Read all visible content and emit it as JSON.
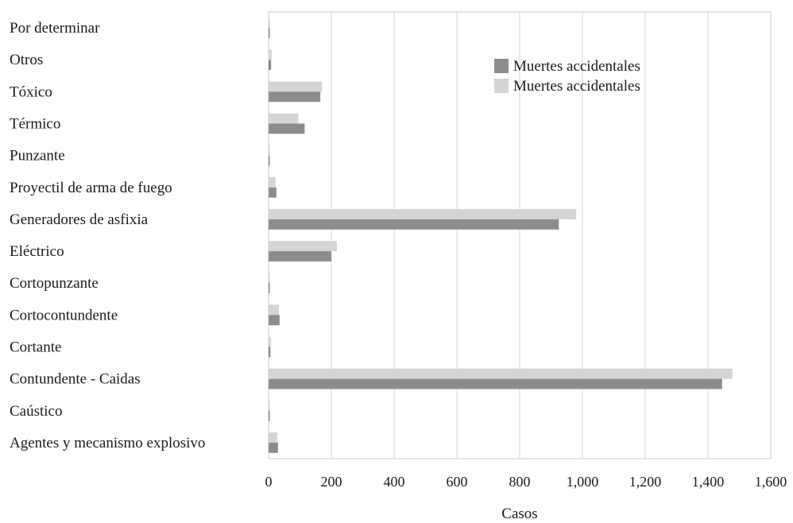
{
  "chart_data": {
    "type": "bar",
    "orientation": "horizontal",
    "title": "",
    "xlabel": "Casos",
    "ylabel": "",
    "xlim": [
      0,
      1600
    ],
    "xticks": [
      0,
      200,
      400,
      600,
      800,
      1000,
      1200,
      1400,
      1600
    ],
    "xtick_labels": [
      "0",
      "200",
      "400",
      "600",
      "800",
      "1,000",
      "1,200",
      "1,400",
      "1,600"
    ],
    "grid": "vertical",
    "legend_position": "top-right",
    "categories": [
      "Por determinar",
      "Otros",
      "Tóxico",
      "Térmico",
      "Punzante",
      "Proyectil de arma de fuego",
      "Generadores de asfixia",
      "Eléctrico",
      "Cortopunzante",
      "Cortocontundente",
      "Cortante",
      "Contundente - Caidas",
      "Caústico",
      "Agentes y mecanismo explosivo"
    ],
    "series": [
      {
        "name": "Muertes accidentales",
        "color": "#8c8c8c",
        "values": [
          3,
          8,
          165,
          115,
          3,
          25,
          925,
          200,
          3,
          35,
          6,
          1445,
          3,
          30
        ]
      },
      {
        "name": "Muertes accidentales",
        "color": "#d4d4d4",
        "values": [
          4,
          10,
          170,
          95,
          2,
          22,
          980,
          218,
          2,
          33,
          7,
          1478,
          3,
          28
        ]
      }
    ]
  }
}
